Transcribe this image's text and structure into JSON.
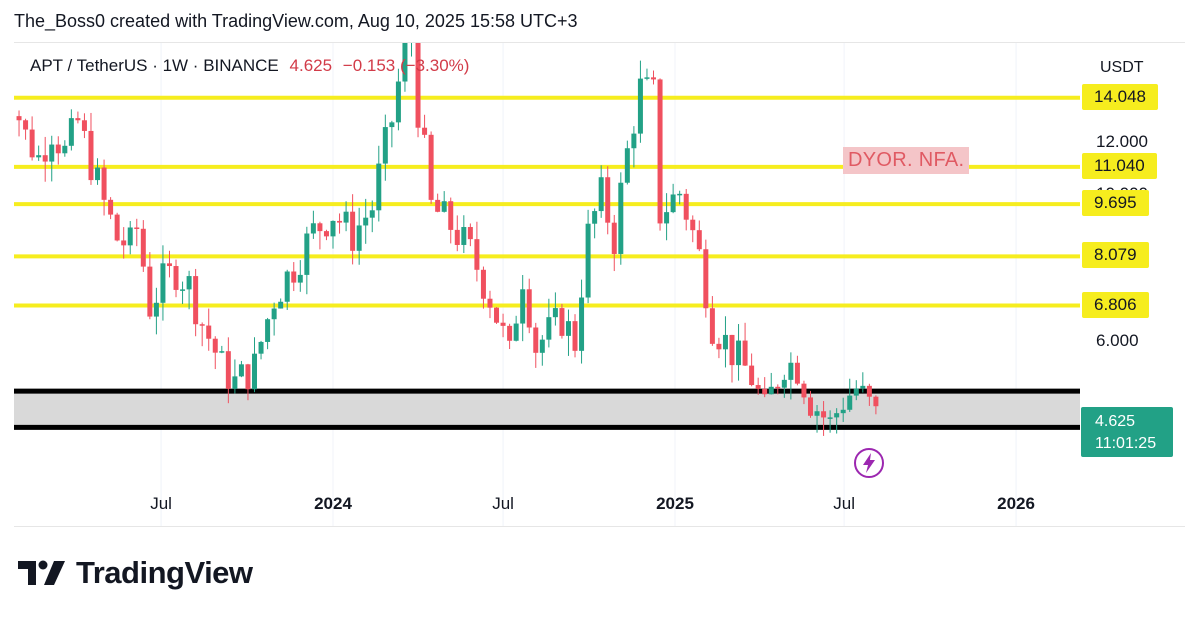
{
  "header": "The_Boss0 created with TradingView.com, Aug 10, 2025 15:58 UTC+3",
  "symbol": {
    "pair": "APT / TetherUS · 1W · BINANCE",
    "last": "4.625",
    "change": "−0.153 (−3.30%)"
  },
  "currency": "USDT",
  "annotation": "DYOR. NFA.",
  "colors": {
    "up": "#22a186",
    "down": "#f0505f",
    "level": "#f6ed1e",
    "badge": "#22a186"
  },
  "price_badge": {
    "price": "4.625",
    "countdown": "11:01:25"
  },
  "brand": "TradingView",
  "chart_data": {
    "type": "candlestick",
    "timeframe": "1W",
    "ylim": [
      4.0,
      17.0
    ],
    "y_ticks": [
      "12.000",
      "10.000",
      "6.000"
    ],
    "x_ticks": [
      {
        "label": "Jul",
        "date": "2023-07"
      },
      {
        "label": "2024",
        "date": "2024-01",
        "bold": true
      },
      {
        "label": "Jul",
        "date": "2024-07"
      },
      {
        "label": "2025",
        "date": "2025-01",
        "bold": true
      },
      {
        "label": "Jul",
        "date": "2025-07"
      },
      {
        "label": "2026",
        "date": "2026-01",
        "bold": true
      }
    ],
    "horizontal_levels": [
      {
        "value": 14.048,
        "label": "14.048"
      },
      {
        "value": 11.04,
        "label": "11.040"
      },
      {
        "value": 9.695,
        "label": "9.695"
      },
      {
        "value": 8.079,
        "label": "8.079"
      },
      {
        "value": 6.806,
        "label": "6.806"
      }
    ],
    "support_zone": [
      4.45,
      5.05
    ],
    "current_price": 4.625,
    "closes_anchor": [
      [
        "2023-01-09",
        15.2
      ],
      [
        "2023-01-23",
        14.0
      ],
      [
        "2023-02-06",
        12.3
      ],
      [
        "2023-02-20",
        11.4
      ],
      [
        "2023-03-06",
        12.6
      ],
      [
        "2023-03-20",
        11.6
      ],
      [
        "2023-04-03",
        12.9
      ],
      [
        "2023-04-17",
        11.2
      ],
      [
        "2023-05-01",
        9.7
      ],
      [
        "2023-05-15",
        8.6
      ],
      [
        "2023-05-29",
        8.4
      ],
      [
        "2023-06-05",
        8.9
      ],
      [
        "2023-06-19",
        6.8
      ],
      [
        "2023-07-03",
        7.4
      ],
      [
        "2023-07-17",
        7.7
      ],
      [
        "2023-07-31",
        7.3
      ],
      [
        "2023-08-14",
        6.4
      ],
      [
        "2023-09-04",
        5.5
      ],
      [
        "2023-09-18",
        5.2
      ],
      [
        "2023-10-09",
        5.5
      ],
      [
        "2023-10-30",
        7.0
      ],
      [
        "2023-11-20",
        7.8
      ],
      [
        "2023-12-11",
        8.8
      ],
      [
        "2024-01-01",
        9.4
      ],
      [
        "2024-01-22",
        8.7
      ],
      [
        "2024-02-12",
        9.6
      ],
      [
        "2024-03-04",
        13.0
      ],
      [
        "2024-03-18",
        16.5
      ],
      [
        "2024-03-25",
        17.6
      ],
      [
        "2024-04-01",
        13.5
      ],
      [
        "2024-04-15",
        9.6
      ],
      [
        "2024-05-06",
        9.0
      ],
      [
        "2024-05-27",
        8.2
      ],
      [
        "2024-06-17",
        7.0
      ],
      [
        "2024-07-08",
        5.7
      ],
      [
        "2024-07-22",
        7.6
      ],
      [
        "2024-08-05",
        5.9
      ],
      [
        "2024-09-02",
        6.5
      ],
      [
        "2024-09-16",
        6.0
      ],
      [
        "2024-09-30",
        8.7
      ],
      [
        "2024-10-14",
        10.0
      ],
      [
        "2024-10-28",
        8.6
      ],
      [
        "2024-11-11",
        11.6
      ],
      [
        "2024-11-25",
        14.5
      ],
      [
        "2024-12-09",
        14.2
      ],
      [
        "2024-12-16",
        9.4
      ],
      [
        "2025-01-06",
        10.1
      ],
      [
        "2025-01-27",
        8.1
      ],
      [
        "2025-02-10",
        6.4
      ],
      [
        "2025-03-03",
        5.8
      ],
      [
        "2025-03-24",
        5.3
      ],
      [
        "2025-04-07",
        4.7
      ],
      [
        "2025-04-28",
        5.6
      ],
      [
        "2025-05-12",
        5.5
      ],
      [
        "2025-05-26",
        4.9
      ],
      [
        "2025-06-16",
        4.5
      ],
      [
        "2025-06-30",
        4.9
      ],
      [
        "2025-07-14",
        5.1
      ],
      [
        "2025-07-28",
        4.8
      ],
      [
        "2025-08-04",
        4.625
      ]
    ]
  }
}
